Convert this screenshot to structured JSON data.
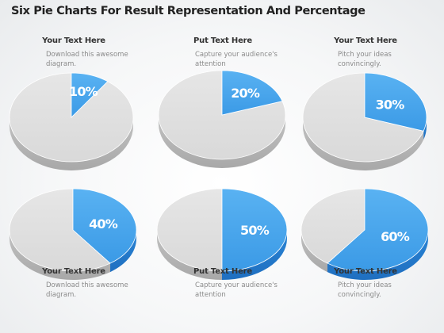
{
  "title": "Six Pie Charts For Result Representation And Percentage",
  "colors": {
    "accent": "#3b9ae6",
    "accent_dark": "#1f6fc0",
    "neutral": "#d9d9d9",
    "neutral_dark": "#a8a8a8",
    "heading_text": "#333333",
    "body_text": "#8a8a8a"
  },
  "captions": [
    {
      "heading": "Your Text Here",
      "lines": [
        "Download this awesome",
        "diagram."
      ]
    },
    {
      "heading": "Put Text Here",
      "lines": [
        "Capture your audience's",
        "attention"
      ]
    },
    {
      "heading": "Your Text Here",
      "lines": [
        "Pitch your ideas",
        "convincingly."
      ]
    },
    {
      "heading": "Your Text Here",
      "lines": [
        "Download this awesome",
        "diagram."
      ]
    },
    {
      "heading": "Put Text Here",
      "lines": [
        "Capture your audience's",
        "attention"
      ]
    },
    {
      "heading": "Your Text Here",
      "lines": [
        "Pitch your ideas",
        "convincingly."
      ]
    }
  ],
  "chart_data": [
    {
      "type": "pie",
      "values": [
        10,
        90
      ],
      "label": "10%"
    },
    {
      "type": "pie",
      "values": [
        20,
        80
      ],
      "label": "20%"
    },
    {
      "type": "pie",
      "values": [
        30,
        70
      ],
      "label": "30%"
    },
    {
      "type": "pie",
      "values": [
        40,
        60
      ],
      "label": "40%"
    },
    {
      "type": "pie",
      "values": [
        50,
        50
      ],
      "label": "50%"
    },
    {
      "type": "pie",
      "values": [
        60,
        40
      ],
      "label": "60%"
    }
  ]
}
